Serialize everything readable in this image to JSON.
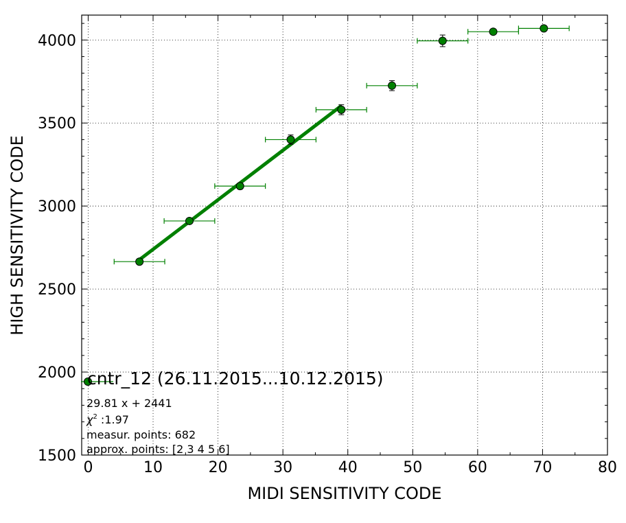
{
  "chart_data": {
    "type": "scatter",
    "xlabel": "MIDI SENSITIVITY CODE",
    "ylabel": "HIGH SENSITIVITY CODE",
    "xlim": [
      -1,
      80
    ],
    "ylim": [
      1500,
      4150
    ],
    "x_ticks": [
      0,
      10,
      20,
      30,
      40,
      50,
      60,
      70,
      80
    ],
    "y_ticks": [
      1500,
      2000,
      2500,
      3000,
      3500,
      4000
    ],
    "x_tick_labels": [
      "0",
      "10",
      "20",
      "30",
      "40",
      "50",
      "60",
      "70",
      "80"
    ],
    "y_tick_labels": [
      "1500",
      "2000",
      "2500",
      "3000",
      "3500",
      "4000"
    ],
    "grid": true,
    "series": [
      {
        "name": "cntr_12 (26.11.2015...10.12.2015)",
        "color": "#008000",
        "points": [
          {
            "x": 7.9,
            "y": 2665,
            "xerr": 3.9,
            "yerr": 10
          },
          {
            "x": 15.6,
            "y": 2910,
            "xerr": 3.9,
            "yerr": 12
          },
          {
            "x": 23.4,
            "y": 3120,
            "xerr": 3.9,
            "yerr": 18
          },
          {
            "x": 31.2,
            "y": 3400,
            "xerr": 3.9,
            "yerr": 28
          },
          {
            "x": 39.0,
            "y": 3580,
            "xerr": 3.9,
            "yerr": 30
          },
          {
            "x": 46.8,
            "y": 3725,
            "xerr": 3.9,
            "yerr": 30
          },
          {
            "x": 54.6,
            "y": 3995,
            "xerr": 3.9,
            "yerr": 35
          },
          {
            "x": 62.4,
            "y": 4050,
            "xerr": 3.9,
            "yerr": 10
          },
          {
            "x": 70.2,
            "y": 4070,
            "xerr": 3.9,
            "yerr": 10
          }
        ]
      }
    ],
    "fit": {
      "slope": 29.81,
      "intercept": 2441,
      "x_range": [
        7.9,
        39.0
      ],
      "color": "#008000"
    },
    "legend": {
      "label": "cntr_12 (26.11.2015...10.12.2015)",
      "placement": "lower-left"
    },
    "annotations": {
      "equation": "29.81 x + 2441",
      "chi2_symbol": "χ",
      "chi2_exp": "2",
      "chi2_value": " :1.97",
      "measur_points": "measur. points: 682",
      "approx_points": "approx. points: [2 3 4 5 6]"
    }
  }
}
